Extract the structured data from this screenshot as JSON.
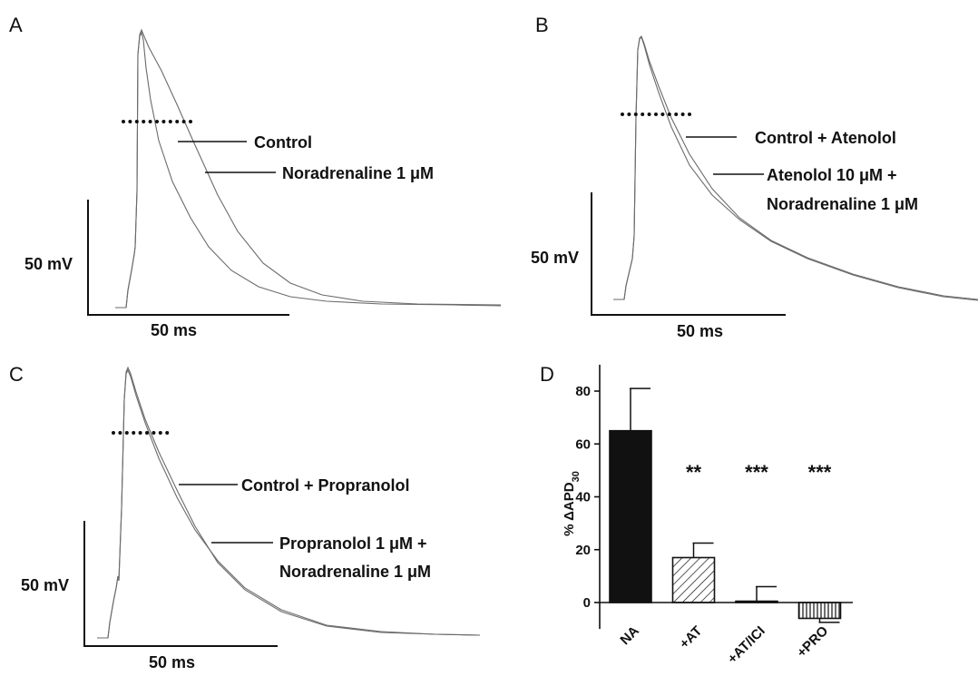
{
  "chart_data": [
    {
      "panel": "A",
      "type": "line",
      "scale_bar": {
        "voltage_label": "50 mV",
        "time_label": "50 ms"
      },
      "series": [
        {
          "name": "Control"
        },
        {
          "name": "Noradrenaline 1 μM"
        }
      ],
      "annotation_lines": [
        "Control",
        "Noradrenaline 1 μM"
      ]
    },
    {
      "panel": "B",
      "type": "line",
      "scale_bar": {
        "voltage_label": "50 mV",
        "time_label": "50 ms"
      },
      "series": [
        {
          "name": "Control + Atenolol"
        },
        {
          "name": "Atenolol 10 μM + Noradrenaline 1 μM"
        }
      ],
      "annotation_lines": [
        "Control + Atenolol",
        "Atenolol 10 μM +",
        "Noradrenaline 1 μM"
      ]
    },
    {
      "panel": "C",
      "type": "line",
      "scale_bar": {
        "voltage_label": "50 mV",
        "time_label": "50 ms"
      },
      "series": [
        {
          "name": "Control + Propranolol"
        },
        {
          "name": "Propranolol 1 μM + Noradrenaline 1 μM"
        }
      ],
      "annotation_lines": [
        "Control + Propranolol",
        "Propranolol 1 μM +",
        "Noradrenaline 1 μM"
      ]
    },
    {
      "panel": "D",
      "type": "bar",
      "ylabel_prefix": "% ΔAPD",
      "ylabel_subscript": "30",
      "ylim": [
        -10,
        90
      ],
      "yticks": [
        "0",
        "20",
        "40",
        "60",
        "80"
      ],
      "categories": [
        "NA",
        "+AT",
        "+AT/ICI",
        "+PRO"
      ],
      "values": [
        65,
        17,
        0.5,
        -6
      ],
      "errors": [
        16,
        5.5,
        5.5,
        1.5
      ],
      "significance": [
        "",
        "**",
        "***",
        "***"
      ],
      "bar_styles": [
        "solid-black",
        "diagonal-hatch",
        "diagonal-hatch",
        "vertical-hatch"
      ]
    }
  ]
}
